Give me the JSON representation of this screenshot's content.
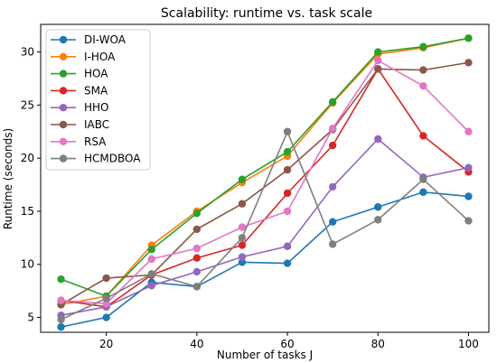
{
  "chart_data": {
    "type": "line",
    "title": "Scalability: runtime vs. task scale",
    "xlabel": "Number of tasks J",
    "ylabel": "Runtime (seconds)",
    "xlim": [
      5.5,
      104.5
    ],
    "ylim": [
      3.6,
      32.6
    ],
    "xticks": [
      20,
      40,
      60,
      80,
      100
    ],
    "yticks": [
      5,
      10,
      15,
      20,
      25,
      30
    ],
    "grid": false,
    "legend_position": "top-left",
    "x": [
      10,
      20,
      30,
      40,
      50,
      60,
      70,
      80,
      90,
      100
    ],
    "series": [
      {
        "name": "DI-WOA",
        "color": "#1f77b4",
        "values": [
          4.1,
          5.0,
          8.3,
          7.9,
          10.2,
          10.1,
          14.0,
          15.4,
          16.8,
          16.4
        ]
      },
      {
        "name": "I-HOA",
        "color": "#ff7f0e",
        "values": [
          6.2,
          7.0,
          11.8,
          15.0,
          17.7,
          20.2,
          25.2,
          29.8,
          30.4,
          31.3
        ]
      },
      {
        "name": "HOA",
        "color": "#2ca02c",
        "values": [
          8.6,
          7.0,
          11.4,
          14.8,
          18.0,
          20.6,
          25.3,
          30.0,
          30.5,
          31.3
        ]
      },
      {
        "name": "SMA",
        "color": "#d62728",
        "values": [
          6.6,
          6.0,
          9.0,
          10.6,
          11.8,
          16.7,
          21.2,
          28.4,
          22.1,
          18.7
        ]
      },
      {
        "name": "HHO",
        "color": "#9467bd",
        "values": [
          5.2,
          6.0,
          8.0,
          9.3,
          10.7,
          11.7,
          17.3,
          21.8,
          18.2,
          19.1
        ]
      },
      {
        "name": "IABC",
        "color": "#8c564b",
        "values": [
          6.2,
          8.7,
          9.0,
          13.3,
          15.7,
          18.9,
          22.7,
          28.4,
          28.3,
          29.0
        ]
      },
      {
        "name": "RSA",
        "color": "#e377c2",
        "values": [
          6.6,
          6.3,
          10.5,
          11.5,
          13.5,
          15.0,
          22.8,
          29.2,
          26.8,
          22.5
        ]
      },
      {
        "name": "HCMDBOA",
        "color": "#7f7f7f",
        "values": [
          4.8,
          6.8,
          9.1,
          7.9,
          12.5,
          22.5,
          11.9,
          14.2,
          18.0,
          14.1
        ]
      }
    ]
  }
}
